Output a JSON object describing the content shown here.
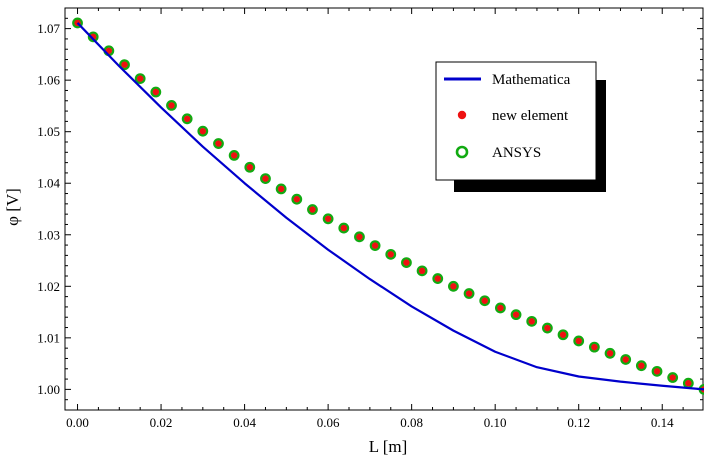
{
  "chart_data": {
    "type": "line",
    "title": "",
    "xlabel": "L [m]",
    "ylabel": "φ [V]",
    "xlim": [
      -0.003,
      0.15
    ],
    "ylim": [
      0.996,
      1.074
    ],
    "x_ticks": [
      0.0,
      0.02,
      0.04,
      0.06,
      0.08,
      0.1,
      0.12,
      0.14
    ],
    "x_tick_labels": [
      "0.00",
      "0.02",
      "0.04",
      "0.06",
      "0.08",
      "0.10",
      "0.12",
      "0.14"
    ],
    "y_ticks": [
      1.0,
      1.01,
      1.02,
      1.03,
      1.04,
      1.05,
      1.06,
      1.07
    ],
    "y_tick_labels": [
      "1.00",
      "1.01",
      "1.02",
      "1.03",
      "1.04",
      "1.05",
      "1.06",
      "1.07"
    ],
    "grid": false,
    "legend_position": "top-right",
    "series": [
      {
        "name": "Mathematica",
        "kind": "line",
        "color": "#0000cc",
        "x": [
          0.0,
          0.01,
          0.02,
          0.03,
          0.04,
          0.05,
          0.06,
          0.07,
          0.08,
          0.09,
          0.1,
          0.11,
          0.12,
          0.13,
          0.14,
          0.15
        ],
        "y": [
          1.0711,
          1.0627,
          1.0547,
          1.0471,
          1.04,
          1.0333,
          1.0271,
          1.0214,
          1.0161,
          1.0114,
          1.0073,
          1.0043,
          1.0025,
          1.0015,
          1.0007,
          1.0
        ]
      },
      {
        "name": "new element",
        "kind": "points",
        "color": "#ee1111",
        "x": [
          0.0,
          0.00375,
          0.0075,
          0.01125,
          0.015,
          0.01875,
          0.0225,
          0.02625,
          0.03,
          0.03375,
          0.0375,
          0.04125,
          0.045,
          0.04875,
          0.0525,
          0.05625,
          0.06,
          0.06375,
          0.0675,
          0.07125,
          0.075,
          0.07875,
          0.0825,
          0.08625,
          0.09,
          0.09375,
          0.0975,
          0.10125,
          0.105,
          0.10875,
          0.1125,
          0.11625,
          0.12,
          0.12375,
          0.1275,
          0.13125,
          0.135,
          0.13875,
          0.1425,
          0.14625,
          0.15
        ],
        "y": [
          1.0711,
          1.0684,
          1.0657,
          1.063,
          1.0603,
          1.0577,
          1.0551,
          1.0525,
          1.0501,
          1.0477,
          1.0454,
          1.0431,
          1.0409,
          1.0389,
          1.0369,
          1.0349,
          1.0331,
          1.0313,
          1.0296,
          1.0279,
          1.0262,
          1.0246,
          1.023,
          1.0215,
          1.02,
          1.0186,
          1.0172,
          1.0158,
          1.0145,
          1.0132,
          1.0119,
          1.0106,
          1.0094,
          1.0082,
          1.007,
          1.0058,
          1.0046,
          1.0035,
          1.0023,
          1.0012,
          1.0
        ]
      },
      {
        "name": "ANSYS",
        "kind": "points",
        "color": "#11aa11",
        "x": [
          0.0,
          0.00375,
          0.0075,
          0.01125,
          0.015,
          0.01875,
          0.0225,
          0.02625,
          0.03,
          0.03375,
          0.0375,
          0.04125,
          0.045,
          0.04875,
          0.0525,
          0.05625,
          0.06,
          0.06375,
          0.0675,
          0.07125,
          0.075,
          0.07875,
          0.0825,
          0.08625,
          0.09,
          0.09375,
          0.0975,
          0.10125,
          0.105,
          0.10875,
          0.1125,
          0.11625,
          0.12,
          0.12375,
          0.1275,
          0.13125,
          0.135,
          0.13875,
          0.1425,
          0.14625,
          0.15
        ],
        "y": [
          1.0711,
          1.0684,
          1.0657,
          1.063,
          1.0603,
          1.0577,
          1.0551,
          1.0525,
          1.0501,
          1.0477,
          1.0454,
          1.0431,
          1.0409,
          1.0389,
          1.0369,
          1.0349,
          1.0331,
          1.0313,
          1.0296,
          1.0279,
          1.0262,
          1.0246,
          1.023,
          1.0215,
          1.02,
          1.0186,
          1.0172,
          1.0158,
          1.0145,
          1.0132,
          1.0119,
          1.0106,
          1.0094,
          1.0082,
          1.007,
          1.0058,
          1.0046,
          1.0035,
          1.0023,
          1.0012,
          1.0
        ]
      }
    ]
  }
}
